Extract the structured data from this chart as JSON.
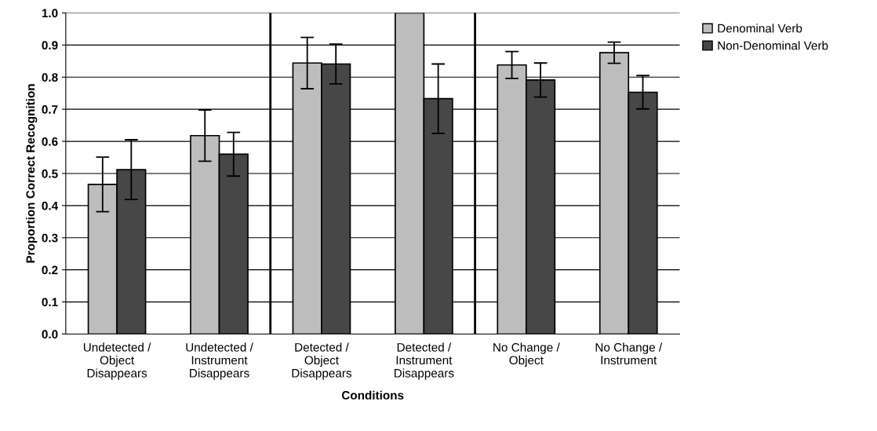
{
  "chart_data": {
    "type": "bar",
    "xlabel": "Conditions",
    "ylabel": "Proportion Correct Recognition",
    "categories": [
      "Undetected /\nObject\nDisappears",
      "Undetected /\nInstrument\nDisappears",
      "Detected /\nObject\nDisappears",
      "Detected /\nInstrument\nDisappears",
      "No Change /\nObject",
      "No Change /\nInstrument"
    ],
    "series": [
      {
        "name": "Denominal Verb",
        "color": "#bdbdbd",
        "values": [
          0.466,
          0.618,
          0.844,
          1.0,
          0.838,
          0.876
        ],
        "errors": [
          0.085,
          0.08,
          0.08,
          null,
          0.042,
          0.033
        ]
      },
      {
        "name": "Non-Denominal Verb",
        "color": "#474747",
        "values": [
          0.512,
          0.56,
          0.841,
          0.733,
          0.791,
          0.753
        ],
        "errors": [
          0.093,
          0.068,
          0.062,
          0.108,
          0.053,
          0.052
        ]
      }
    ],
    "ylim": [
      0,
      1.0
    ],
    "yticks": [
      {
        "value": 0,
        "label": "0.0"
      },
      {
        "value": 0.1,
        "label": "0.1"
      },
      {
        "value": 0.2,
        "label": "0.2"
      },
      {
        "value": 0.3,
        "label": "0.3"
      },
      {
        "value": 0.4,
        "label": "0.4"
      },
      {
        "value": 0.5,
        "label": "0.5"
      },
      {
        "value": 0.6,
        "label": "0.6"
      },
      {
        "value": 0.7,
        "label": "0.7"
      },
      {
        "value": 0.8,
        "label": "0.8"
      },
      {
        "value": 0.9,
        "label": "0.9"
      },
      {
        "value": 1.0,
        "label": "1.0"
      }
    ],
    "grid": "y",
    "legend": "top right"
  }
}
